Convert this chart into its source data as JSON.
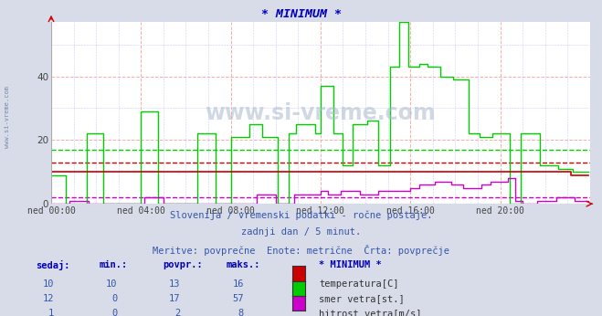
{
  "title": "* MINIMUM *",
  "title_color": "#0000bb",
  "bg_color": "#d8dce8",
  "plot_bg_color": "#ffffff",
  "xlim": [
    0,
    288
  ],
  "ylim": [
    0,
    57
  ],
  "yticks": [
    0,
    20,
    40
  ],
  "xtick_labels": [
    "ned 00:00",
    "ned 04:00",
    "ned 08:00",
    "ned 12:00",
    "ned 16:00",
    "ned 20:00"
  ],
  "xtick_positions": [
    0,
    48,
    96,
    144,
    192,
    240
  ],
  "text_line1": "Slovenija / vremenski podatki - ročne postaje.",
  "text_line2": "zadnji dan / 5 minut.",
  "text_line3": "Meritve: povprečne  Enote: metrične  Črta: povprečje",
  "watermark": "www.si-vreme.com",
  "sidebar_text": "www.si-vreme.com",
  "temp_color": "#cc0000",
  "wind_dir_color": "#00cc00",
  "wind_speed_color": "#cc00cc",
  "temp_avg": 13,
  "wind_dir_avg": 17,
  "wind_speed_avg": 2,
  "legend_title": "* MINIMUM *",
  "col_headers": [
    "sedaj:",
    "min.:",
    "povpr.:",
    "maks.:"
  ],
  "rows": [
    {
      "sedaj": 10,
      "min": 10,
      "povpr": 13,
      "maks": 16,
      "color": "#cc0000",
      "label": "temperatura[C]"
    },
    {
      "sedaj": 12,
      "min": 0,
      "povpr": 17,
      "maks": 57,
      "color": "#00cc00",
      "label": "smer vetra[st.]"
    },
    {
      "sedaj": 1,
      "min": 0,
      "povpr": 2,
      "maks": 8,
      "color": "#cc00cc",
      "label": "hitrost vetra[m/s]"
    }
  ],
  "wind_dir_data_raw": [
    [
      0,
      8,
      9
    ],
    [
      8,
      19,
      0
    ],
    [
      19,
      28,
      22
    ],
    [
      28,
      48,
      0
    ],
    [
      48,
      57,
      29
    ],
    [
      57,
      78,
      0
    ],
    [
      78,
      88,
      22
    ],
    [
      88,
      96,
      0
    ],
    [
      96,
      106,
      21
    ],
    [
      106,
      113,
      25
    ],
    [
      113,
      121,
      21
    ],
    [
      121,
      127,
      0
    ],
    [
      127,
      131,
      22
    ],
    [
      131,
      141,
      25
    ],
    [
      141,
      144,
      22
    ],
    [
      144,
      151,
      37
    ],
    [
      151,
      156,
      22
    ],
    [
      156,
      161,
      12
    ],
    [
      161,
      169,
      25
    ],
    [
      169,
      175,
      26
    ],
    [
      175,
      181,
      12
    ],
    [
      181,
      186,
      43
    ],
    [
      186,
      191,
      57
    ],
    [
      191,
      197,
      43
    ],
    [
      197,
      201,
      44
    ],
    [
      201,
      208,
      43
    ],
    [
      208,
      215,
      40
    ],
    [
      215,
      223,
      39
    ],
    [
      223,
      229,
      22
    ],
    [
      229,
      236,
      21
    ],
    [
      236,
      241,
      22
    ],
    [
      241,
      245,
      22
    ],
    [
      245,
      251,
      0
    ],
    [
      251,
      261,
      22
    ],
    [
      261,
      271,
      12
    ],
    [
      271,
      279,
      11
    ],
    [
      279,
      288,
      10
    ]
  ],
  "wind_speed_data_raw": [
    [
      0,
      10,
      0
    ],
    [
      10,
      20,
      1
    ],
    [
      20,
      50,
      0
    ],
    [
      50,
      60,
      2
    ],
    [
      60,
      96,
      0
    ],
    [
      96,
      110,
      0
    ],
    [
      110,
      120,
      3
    ],
    [
      120,
      130,
      0
    ],
    [
      130,
      144,
      3
    ],
    [
      144,
      148,
      4
    ],
    [
      148,
      155,
      3
    ],
    [
      155,
      165,
      4
    ],
    [
      165,
      175,
      3
    ],
    [
      175,
      192,
      4
    ],
    [
      192,
      197,
      5
    ],
    [
      197,
      205,
      6
    ],
    [
      205,
      214,
      7
    ],
    [
      214,
      220,
      6
    ],
    [
      220,
      230,
      5
    ],
    [
      230,
      235,
      6
    ],
    [
      235,
      244,
      7
    ],
    [
      244,
      248,
      8
    ],
    [
      248,
      252,
      1
    ],
    [
      252,
      260,
      0
    ],
    [
      260,
      270,
      1
    ],
    [
      270,
      280,
      2
    ],
    [
      280,
      288,
      1
    ]
  ]
}
